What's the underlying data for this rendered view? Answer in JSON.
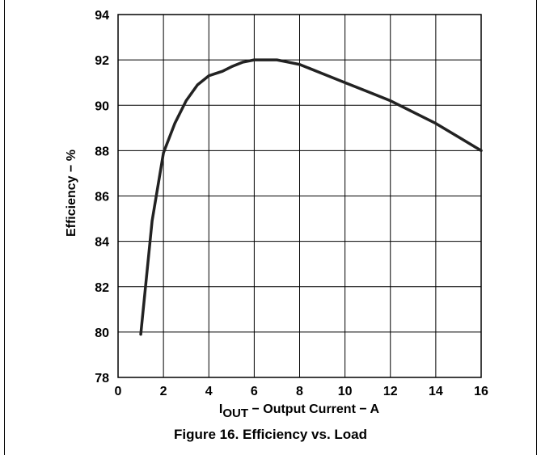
{
  "caption": "Figure 16. Efficiency vs. Load",
  "chart_data": {
    "type": "line",
    "title": "",
    "xlabel": {
      "main": "I",
      "subscript": "OUT",
      "rest": " − Output Current − A"
    },
    "ylabel": "Efficiency − %",
    "xlim": [
      0,
      16
    ],
    "ylim": [
      78,
      94
    ],
    "x_ticks": [
      0,
      2,
      4,
      6,
      8,
      10,
      12,
      14,
      16
    ],
    "y_ticks": [
      78,
      80,
      82,
      84,
      86,
      88,
      90,
      92,
      94
    ],
    "grid": true,
    "line_color": "#222222",
    "series": [
      {
        "x": [
          1.0,
          1.5,
          2.0,
          2.5,
          3.0,
          3.5,
          4.0,
          4.3,
          4.6,
          5.0,
          5.5,
          6.0,
          6.5,
          7.0,
          7.5,
          8.0,
          9.0,
          10.0,
          11.0,
          12.0,
          13.0,
          14.0,
          15.0,
          16.0
        ],
        "y": [
          79.9,
          84.9,
          87.9,
          89.2,
          90.2,
          90.9,
          91.3,
          91.4,
          91.5,
          91.7,
          91.9,
          92.0,
          92.0,
          92.0,
          91.9,
          91.8,
          91.4,
          91.0,
          90.6,
          90.2,
          89.7,
          89.2,
          88.6,
          88.0
        ]
      }
    ]
  }
}
